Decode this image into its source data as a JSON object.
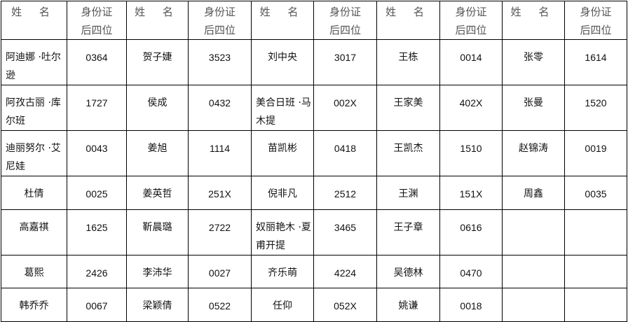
{
  "headers": {
    "name": "姓 名",
    "id_line1": "身份证",
    "id_line2": "后四位"
  },
  "columns": [
    [
      [
        "阿迪娜 ·吐尔逊",
        "0364"
      ],
      [
        "阿孜古丽 ·库尔班",
        "1727"
      ],
      [
        "迪丽努尔 ·艾尼娃",
        "0043"
      ],
      [
        "杜倩",
        "0025"
      ],
      [
        "高嘉祺",
        "1625"
      ],
      [
        "葛熙",
        "2426"
      ],
      [
        "韩乔乔",
        "0067"
      ]
    ],
    [
      [
        "贺子婕",
        "3523"
      ],
      [
        "侯成",
        "0432"
      ],
      [
        "姜旭",
        "1114"
      ],
      [
        "姜英哲",
        "251X"
      ],
      [
        "靳晨璐",
        "2722"
      ],
      [
        "李沛华",
        "0027"
      ],
      [
        "梁颖倩",
        "0522"
      ]
    ],
    [
      [
        "刘中央",
        "3017"
      ],
      [
        "美合日班 ·马木提",
        "002X"
      ],
      [
        "苗凯彬",
        "0418"
      ],
      [
        "倪非凡",
        "2512"
      ],
      [
        "奴丽艳木 ·夏甫开提",
        "3465"
      ],
      [
        "齐乐萌",
        "4224"
      ],
      [
        "任仰",
        "052X"
      ]
    ],
    [
      [
        "王栋",
        "0014"
      ],
      [
        "王家美",
        "402X"
      ],
      [
        "王凯杰",
        "1510"
      ],
      [
        "王渊",
        "151X"
      ],
      [
        "王子章",
        "0616"
      ],
      [
        "吴德林",
        "0470"
      ],
      [
        "姚谦",
        "0018"
      ]
    ],
    [
      [
        "张零",
        "1614"
      ],
      [
        "张曼",
        "1520"
      ],
      [
        "赵锦涛",
        "0019"
      ],
      [
        "周鑫",
        "0035"
      ],
      [
        "",
        ""
      ],
      [
        "",
        ""
      ],
      [
        "",
        ""
      ]
    ]
  ]
}
